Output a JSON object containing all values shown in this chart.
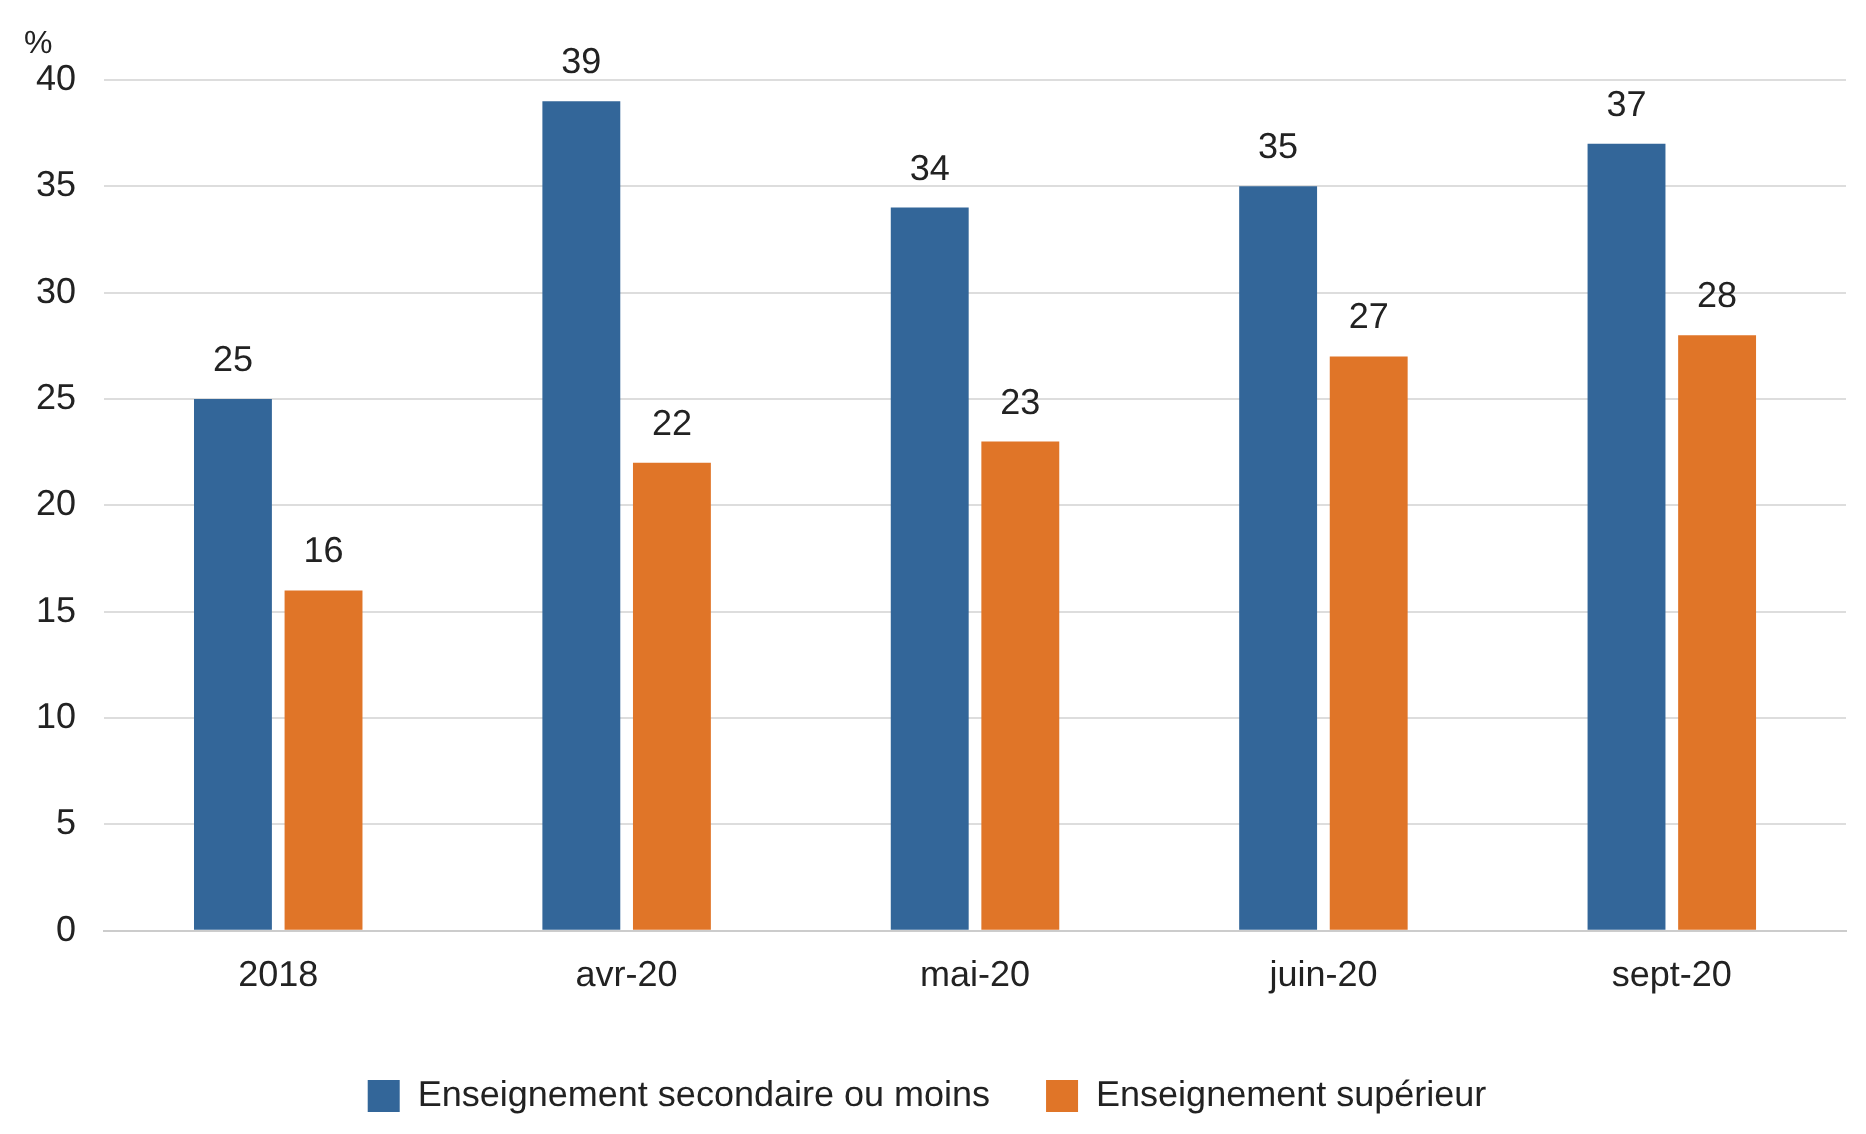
{
  "chart_data": {
    "type": "bar",
    "ylabel": "%",
    "categories": [
      "2018",
      "avr-20",
      "mai-20",
      "juin-20",
      "sept-20"
    ],
    "series": [
      {
        "name": "Enseignement secondaire ou moins",
        "color": "#336699",
        "values": [
          25,
          39,
          34,
          35,
          37
        ]
      },
      {
        "name": "Enseignement supérieur",
        "color": "#e07528",
        "values": [
          16,
          22,
          23,
          27,
          28
        ]
      }
    ],
    "ylim": [
      0,
      40
    ],
    "yticks": [
      0,
      5,
      10,
      15,
      20,
      25,
      30,
      35,
      40
    ],
    "grid": "y",
    "legend": "bottom",
    "data_labels": true
  }
}
